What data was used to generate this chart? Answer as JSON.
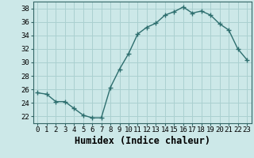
{
  "x": [
    0,
    1,
    2,
    3,
    4,
    5,
    6,
    7,
    8,
    9,
    10,
    11,
    12,
    13,
    14,
    15,
    16,
    17,
    18,
    19,
    20,
    21,
    22,
    23
  ],
  "y": [
    25.5,
    25.3,
    24.2,
    24.2,
    23.2,
    22.2,
    21.8,
    21.8,
    26.3,
    29.0,
    31.3,
    34.2,
    35.2,
    35.8,
    37.0,
    37.5,
    38.2,
    37.3,
    37.6,
    37.0,
    35.7,
    34.8,
    32.0,
    30.4
  ],
  "line_color": "#2d6e6e",
  "marker": "+",
  "marker_size": 4,
  "marker_lw": 1.0,
  "bg_color": "#cce8e8",
  "grid_color": "#aad0d0",
  "xlabel": "Humidex (Indice chaleur)",
  "xlim": [
    -0.5,
    23.5
  ],
  "ylim": [
    21.0,
    39.0
  ],
  "yticks": [
    22,
    24,
    26,
    28,
    30,
    32,
    34,
    36,
    38
  ],
  "xticks": [
    0,
    1,
    2,
    3,
    4,
    5,
    6,
    7,
    8,
    9,
    10,
    11,
    12,
    13,
    14,
    15,
    16,
    17,
    18,
    19,
    20,
    21,
    22,
    23
  ],
  "tick_fontsize": 6.5,
  "xlabel_fontsize": 8.5,
  "line_width": 1.0,
  "spine_color": "#336666"
}
